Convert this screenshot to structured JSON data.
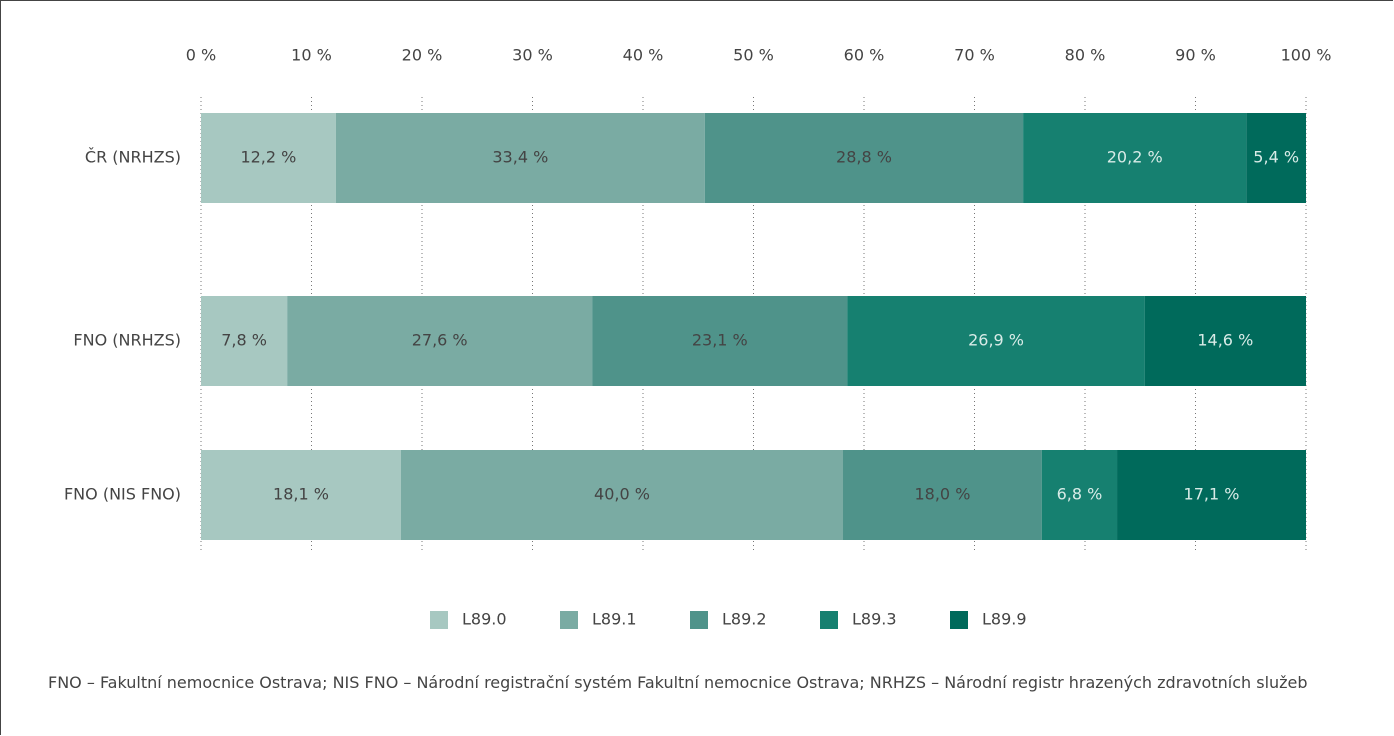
{
  "chart_data": {
    "type": "stacked_barh",
    "categories": [
      "ČR (NRHZS)",
      "FNO (NRHZS)",
      "FNO (NIS FNO)"
    ],
    "series": [
      {
        "name": "L89.0",
        "color": "#a7c8c1",
        "values": [
          12.2,
          7.8,
          18.1
        ],
        "value_labels": [
          "12,2 %",
          "7,8 %",
          "18,1 %"
        ]
      },
      {
        "name": "L89.1",
        "color": "#7aaba3",
        "values": [
          33.4,
          27.6,
          40.0
        ],
        "value_labels": [
          "33,4 %",
          "27,6 %",
          "40,0 %"
        ]
      },
      {
        "name": "L89.2",
        "color": "#4f938a",
        "values": [
          28.8,
          23.1,
          18.0
        ],
        "value_labels": [
          "28,8 %",
          "23,1 %",
          "18,0 %"
        ]
      },
      {
        "name": "L89.3",
        "color": "#168070",
        "values": [
          20.2,
          26.9,
          6.8
        ],
        "value_labels": [
          "20,2 %",
          "26,9 %",
          "6,8 %"
        ]
      },
      {
        "name": "L89.9",
        "color": "#006a5b",
        "values": [
          5.4,
          14.6,
          17.1
        ],
        "value_labels": [
          "5,4 %",
          "14,6 %",
          "17,1 %"
        ]
      }
    ],
    "xlim": [
      0,
      100
    ],
    "xticks": [
      {
        "value": 0,
        "label": "0 %"
      },
      {
        "value": 10,
        "label": "10 %"
      },
      {
        "value": 20,
        "label": "20 %"
      },
      {
        "value": 30,
        "label": "30 %"
      },
      {
        "value": 40,
        "label": "40 %"
      },
      {
        "value": 50,
        "label": "50 %"
      },
      {
        "value": 60,
        "label": "60 %"
      },
      {
        "value": 70,
        "label": "70 %"
      },
      {
        "value": 80,
        "label": "80 %"
      },
      {
        "value": 90,
        "label": "90 %"
      },
      {
        "value": 100,
        "label": "100 %"
      }
    ],
    "grid": true,
    "legend": "bottom",
    "note": "FNO – Fakultní nemocnice Ostrava; NIS FNO – Národní registrační systém Fakultní nemocnice Ostrava; NRHZS – Národní registr hrazených zdravotních služeb"
  }
}
